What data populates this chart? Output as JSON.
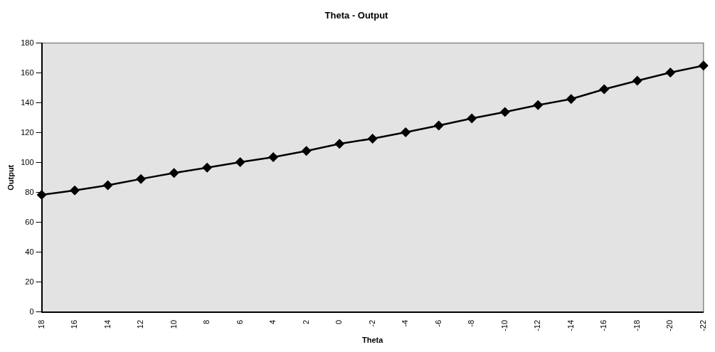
{
  "chart_data": {
    "type": "line",
    "title": "Theta - Output",
    "xlabel": "Theta",
    "ylabel": "Output",
    "categories": [
      "18",
      "16",
      "14",
      "12",
      "10",
      "8",
      "6",
      "4",
      "2",
      "0",
      "-2",
      "-4",
      "-6",
      "-8",
      "-10",
      "-12",
      "-14",
      "-16",
      "-18",
      "-20",
      "-22"
    ],
    "series": [
      {
        "color": "#000000",
        "values": [
          78.5,
          81.4,
          84.9,
          89.1,
          93.1,
          96.7,
          100.3,
          103.7,
          107.8,
          112.6,
          116.1,
          120.3,
          124.9,
          129.6,
          133.9,
          138.5,
          142.6,
          149.1,
          154.8,
          160.3,
          164.9
        ]
      }
    ],
    "ylim": [
      0,
      180
    ],
    "yticks": [
      0,
      20,
      40,
      60,
      80,
      100,
      120,
      140,
      160,
      180
    ],
    "grid": false,
    "legend": false,
    "marker": "diamond",
    "line_style": "solid"
  }
}
